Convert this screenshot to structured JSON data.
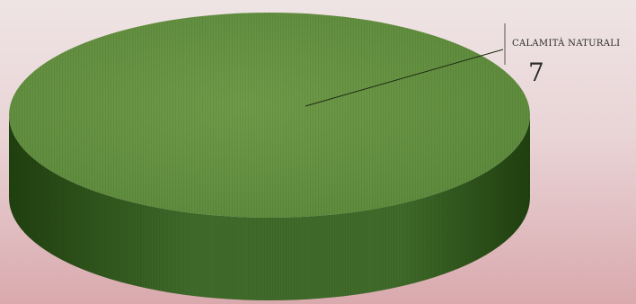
{
  "chart_data": {
    "type": "pie",
    "slices": [
      {
        "label": "CALAMITÀ NATURALI",
        "value": 7
      }
    ],
    "style": "3d",
    "colors": {
      "top": "#6f9a48",
      "top_edge": "#5d8a3c",
      "side_light": "#3f6a2a",
      "side_dark": "#20400f"
    }
  }
}
